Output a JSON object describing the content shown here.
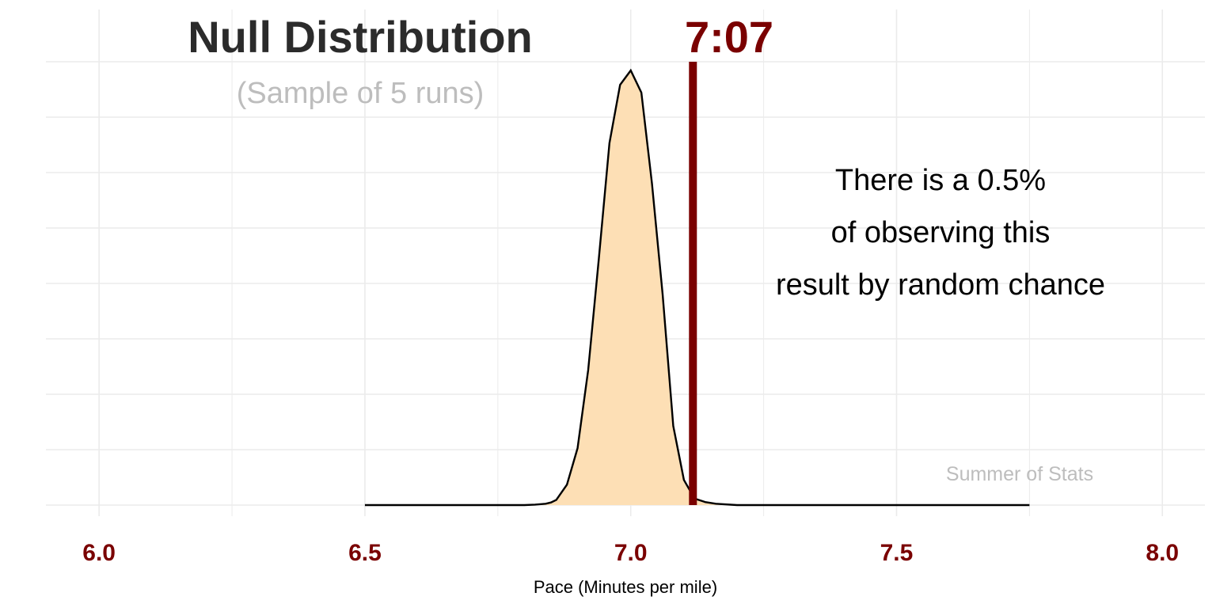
{
  "chart_data": {
    "type": "area",
    "title": "Null Distribution",
    "subtitle": "(Sample of 5 runs)",
    "xlabel": "Pace (Minutes per mile)",
    "ylabel": "",
    "xlim": [
      5.9,
      8.08
    ],
    "x_ticks": [
      6.0,
      6.5,
      7.0,
      7.5,
      8.0
    ],
    "x_tick_labels": [
      "6.0",
      "6.5",
      "7.0",
      "7.5",
      "8.0"
    ],
    "grid": true,
    "legend": "none",
    "series": [
      {
        "x": [
          6.5,
          6.8,
          6.82,
          6.84,
          6.85,
          6.86,
          6.88,
          6.9,
          6.92,
          6.94,
          6.96,
          6.98,
          7.0,
          7.02,
          7.04,
          7.06,
          7.08,
          7.1,
          7.12,
          7.14,
          7.16,
          7.2,
          7.75
        ],
        "y": [
          0.0,
          0.0,
          0.001,
          0.003,
          0.006,
          0.012,
          0.047,
          0.131,
          0.311,
          0.567,
          0.833,
          0.967,
          1.0,
          0.949,
          0.739,
          0.485,
          0.182,
          0.058,
          0.015,
          0.007,
          0.003,
          0.0,
          0.0
        ]
      }
    ],
    "observed": {
      "x": 7.117,
      "label": "7:07"
    },
    "annotation": [
      "There is a 0.5%",
      "of observing this",
      "result by random chance"
    ],
    "watermark": "Summer of Stats",
    "colors": {
      "fill": "#fddfb5",
      "outline": "#000000",
      "accent": "#7a0000",
      "grid": "#ebebeb"
    }
  }
}
